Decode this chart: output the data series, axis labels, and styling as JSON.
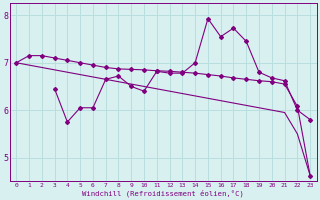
{
  "x": [
    0,
    1,
    2,
    3,
    4,
    5,
    6,
    7,
    8,
    9,
    10,
    11,
    12,
    13,
    14,
    15,
    16,
    17,
    18,
    19,
    20,
    21,
    22,
    23
  ],
  "series1": [
    7.0,
    7.15,
    7.15,
    7.1,
    7.05,
    7.0,
    6.95,
    6.9,
    6.87,
    6.86,
    6.85,
    6.83,
    6.82,
    6.8,
    6.78,
    6.75,
    6.72,
    6.68,
    6.65,
    6.62,
    6.6,
    6.55,
    6.08,
    4.62
  ],
  "series2": [
    7.0,
    6.95,
    6.9,
    6.85,
    6.8,
    6.75,
    6.7,
    6.65,
    6.6,
    6.55,
    6.5,
    6.45,
    6.4,
    6.35,
    6.3,
    6.25,
    6.2,
    6.15,
    6.1,
    6.05,
    6.0,
    5.95,
    5.5,
    4.62
  ],
  "series3": [
    null,
    null,
    null,
    6.45,
    5.75,
    6.05,
    6.05,
    6.65,
    6.72,
    6.5,
    6.4,
    6.82,
    6.78,
    6.78,
    7.0,
    7.93,
    7.55,
    7.73,
    7.45,
    6.8,
    6.68,
    6.62,
    6.0,
    5.8
  ],
  "line_color": "#800080",
  "bg_color": "#d8f0f0",
  "grid_color": "#b8dede",
  "xlabel": "Windchill (Refroidissement éolien,°C)",
  "ylim_min": 4.5,
  "ylim_max": 8.25,
  "yticks": [
    5,
    6,
    7,
    8
  ],
  "xtick_labels": [
    "0",
    "1",
    "2",
    "3",
    "4",
    "5",
    "6",
    "7",
    "8",
    "9",
    "10",
    "11",
    "12",
    "13",
    "14",
    "15",
    "16",
    "17",
    "18",
    "19",
    "20",
    "21",
    "22",
    "23"
  ]
}
